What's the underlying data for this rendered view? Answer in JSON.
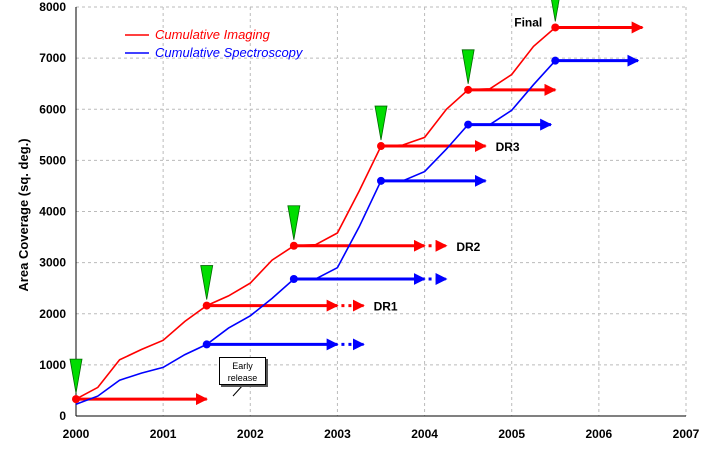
{
  "chart_data": {
    "type": "line",
    "title": "",
    "xlabel": "",
    "ylabel": "Area Coverage (sq. deg.)",
    "xlim": [
      2000,
      2007
    ],
    "ylim": [
      0,
      8000
    ],
    "x_ticks": [
      "2000",
      "2001",
      "2002",
      "2003",
      "2004",
      "2005",
      "2006",
      "2007"
    ],
    "y_ticks": [
      "0",
      "1000",
      "2000",
      "3000",
      "4000",
      "5000",
      "6000",
      "7000",
      "8000"
    ],
    "grid": true,
    "legend_position": "top-left",
    "colors": {
      "imaging": "#ff0000",
      "spectroscopy": "#0000ff",
      "marker": "#00dd00"
    },
    "series": [
      {
        "name": "Cumulative Imaging",
        "x": [
          2000.0,
          2000.25,
          2000.5,
          2000.75,
          2001.0,
          2001.25,
          2001.5,
          2001.75,
          2002.0,
          2002.25,
          2002.5,
          2002.75,
          2003.0,
          2003.25,
          2003.5,
          2003.75,
          2004.0,
          2004.25,
          2004.5,
          2004.75,
          2005.0,
          2005.25,
          2005.5
        ],
        "values": [
          330,
          560,
          1100,
          1300,
          1480,
          1850,
          2160,
          2350,
          2600,
          3050,
          3330,
          3350,
          3580,
          4400,
          5280,
          5300,
          5450,
          6000,
          6380,
          6400,
          6680,
          7230,
          7600
        ]
      },
      {
        "name": "Cumulative Spectroscopy",
        "x": [
          2000.0,
          2000.25,
          2000.5,
          2000.75,
          2001.0,
          2001.25,
          2001.5,
          2001.75,
          2002.0,
          2002.25,
          2002.5,
          2002.75,
          2003.0,
          2003.25,
          2003.5,
          2003.75,
          2004.0,
          2004.25,
          2004.5,
          2004.75,
          2005.0,
          2005.25,
          2005.5
        ],
        "values": [
          230,
          390,
          700,
          840,
          950,
          1200,
          1400,
          1720,
          1960,
          2300,
          2680,
          2680,
          2900,
          3700,
          4600,
          4600,
          4780,
          5220,
          5700,
          5700,
          5980,
          6480,
          6950
        ]
      }
    ],
    "releases": [
      {
        "label": "",
        "x": 2000.0,
        "imaging": 330,
        "spectroscopy": 230,
        "imaging_arrow_end": 2001.5,
        "spectroscopy_arrow_end": null,
        "dotted_end": null
      },
      {
        "label": "DR1",
        "x": 2001.5,
        "imaging": 2160,
        "spectroscopy": 1400,
        "imaging_arrow_end": 2003.0,
        "spectroscopy_arrow_end": 2003.0,
        "dotted_end": 2003.3
      },
      {
        "label": "DR2",
        "x": 2002.5,
        "imaging": 3330,
        "spectroscopy": 2680,
        "imaging_arrow_end": 2004.0,
        "spectroscopy_arrow_end": 2004.0,
        "dotted_end": 2004.25
      },
      {
        "label": "DR3",
        "x": 2003.5,
        "imaging": 5280,
        "spectroscopy": 4600,
        "imaging_arrow_end": 2004.7,
        "spectroscopy_arrow_end": 2004.7,
        "dotted_end": null
      },
      {
        "label": "",
        "x": 2004.5,
        "imaging": 6380,
        "spectroscopy": 5700,
        "imaging_arrow_end": 2005.5,
        "spectroscopy_arrow_end": 2005.45,
        "dotted_end": null
      },
      {
        "label": "Final",
        "x": 2005.5,
        "imaging": 7600,
        "spectroscopy": 6950,
        "imaging_arrow_end": 2006.5,
        "spectroscopy_arrow_end": 2006.45,
        "dotted_end": null
      }
    ],
    "callout": {
      "line1": "Early",
      "line2": "release"
    }
  }
}
